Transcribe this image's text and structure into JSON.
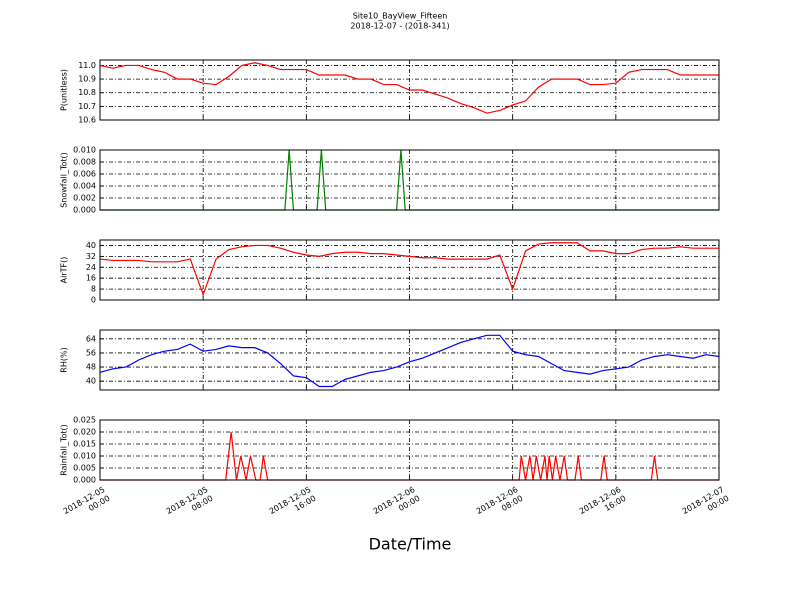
{
  "chart_data": [
    {
      "type": "line",
      "title": "Site10_BayView_Fifteen",
      "subtitle": "2018-12-07 - (2018-341)",
      "ylabel": "P(unitless)",
      "color": "#ff0000",
      "x": [
        "2018-12-05 00:00",
        "2018-12-05 01:00",
        "2018-12-05 02:00",
        "2018-12-05 03:00",
        "2018-12-05 04:00",
        "2018-12-05 05:00",
        "2018-12-05 06:00",
        "2018-12-05 07:00",
        "2018-12-05 08:00",
        "2018-12-05 09:00",
        "2018-12-05 10:00",
        "2018-12-05 11:00",
        "2018-12-05 12:00",
        "2018-12-05 13:00",
        "2018-12-05 14:00",
        "2018-12-05 15:00",
        "2018-12-05 16:00",
        "2018-12-05 17:00",
        "2018-12-05 18:00",
        "2018-12-05 19:00",
        "2018-12-05 20:00",
        "2018-12-05 21:00",
        "2018-12-05 22:00",
        "2018-12-05 23:00",
        "2018-12-06 00:00",
        "2018-12-06 01:00",
        "2018-12-06 02:00",
        "2018-12-06 03:00",
        "2018-12-06 04:00",
        "2018-12-06 05:00",
        "2018-12-06 06:00",
        "2018-12-06 07:00",
        "2018-12-06 08:00",
        "2018-12-06 09:00",
        "2018-12-06 10:00",
        "2018-12-06 11:00",
        "2018-12-06 12:00",
        "2018-12-06 13:00",
        "2018-12-06 14:00",
        "2018-12-06 15:00",
        "2018-12-06 16:00",
        "2018-12-06 17:00",
        "2018-12-06 18:00",
        "2018-12-06 19:00",
        "2018-12-06 20:00",
        "2018-12-06 21:00",
        "2018-12-06 22:00",
        "2018-12-06 23:00",
        "2018-12-07 00:00"
      ],
      "values": [
        11.0,
        10.98,
        11.0,
        11.0,
        10.97,
        10.95,
        10.9,
        10.9,
        10.87,
        10.86,
        10.92,
        11.0,
        11.02,
        11.0,
        10.97,
        10.97,
        10.97,
        10.93,
        10.93,
        10.93,
        10.9,
        10.9,
        10.86,
        10.86,
        10.82,
        10.82,
        10.79,
        10.76,
        10.72,
        10.69,
        10.65,
        10.67,
        10.71,
        10.74,
        10.84,
        10.9,
        10.9,
        10.9,
        10.86,
        10.86,
        10.87,
        10.95,
        10.97,
        10.97,
        10.97,
        10.93,
        10.93,
        10.93,
        10.93
      ],
      "ylim": [
        10.6,
        11.04
      ],
      "yticks": [
        {
          "value": 11,
          "label": "11.0"
        },
        10.9,
        10.8,
        10.7,
        10.6
      ],
      "grid": true
    },
    {
      "type": "line",
      "ylabel": "Snowfall_Tot()",
      "color": "#007f00",
      "x": [
        "2018-12-05 00:00",
        "2018-12-05 14:20",
        "2018-12-05 14:40",
        "2018-12-05 15:00",
        "2018-12-05 16:50",
        "2018-12-05 17:10",
        "2018-12-05 17:30",
        "2018-12-05 23:00",
        "2018-12-05 23:20",
        "2018-12-05 23:40",
        "2018-12-07 00:00"
      ],
      "values": [
        0,
        0,
        0.01,
        0,
        0,
        0.01,
        0,
        0,
        0.01,
        0,
        0
      ],
      "ylim": [
        0,
        0.01
      ],
      "yticks": [
        {
          "value": 0,
          "label": "0.000"
        },
        0.002,
        0.004,
        0.006,
        0.008,
        {
          "value": 0.01,
          "label": "0.010"
        }
      ],
      "grid": true
    },
    {
      "type": "line",
      "ylabel": "AirTF()",
      "color": "#ff0000",
      "x": [
        "2018-12-05 00:00",
        "2018-12-05 01:00",
        "2018-12-05 02:00",
        "2018-12-05 03:00",
        "2018-12-05 04:00",
        "2018-12-05 05:00",
        "2018-12-05 06:00",
        "2018-12-05 07:00",
        "2018-12-05 08:00",
        "2018-12-05 09:00",
        "2018-12-05 10:00",
        "2018-12-05 11:00",
        "2018-12-05 12:00",
        "2018-12-05 13:00",
        "2018-12-05 14:00",
        "2018-12-05 15:00",
        "2018-12-05 16:00",
        "2018-12-05 17:00",
        "2018-12-05 18:00",
        "2018-12-05 19:00",
        "2018-12-05 20:00",
        "2018-12-05 21:00",
        "2018-12-05 22:00",
        "2018-12-05 23:00",
        "2018-12-06 00:00",
        "2018-12-06 01:00",
        "2018-12-06 02:00",
        "2018-12-06 03:00",
        "2018-12-06 04:00",
        "2018-12-06 05:00",
        "2018-12-06 06:00",
        "2018-12-06 07:00",
        "2018-12-06 08:00",
        "2018-12-06 09:00",
        "2018-12-06 10:00",
        "2018-12-06 11:00",
        "2018-12-06 12:00",
        "2018-12-06 13:00",
        "2018-12-06 14:00",
        "2018-12-06 15:00",
        "2018-12-06 16:00",
        "2018-12-06 17:00",
        "2018-12-06 18:00",
        "2018-12-06 19:00",
        "2018-12-06 20:00",
        "2018-12-06 21:00",
        "2018-12-06 22:00",
        "2018-12-06 23:00",
        "2018-12-07 00:00"
      ],
      "values": [
        30,
        29,
        29,
        29,
        28,
        28,
        28,
        30,
        4,
        30,
        37,
        39,
        40,
        40,
        38,
        35,
        33,
        32,
        34,
        35,
        35,
        34,
        34,
        33,
        32,
        31,
        31,
        30,
        30,
        30,
        30,
        33,
        8,
        36,
        41,
        42,
        42,
        42,
        36,
        36,
        34,
        34,
        37,
        38,
        38,
        39,
        38,
        38,
        38
      ],
      "ylim": [
        0,
        44
      ],
      "yticks": [
        0,
        8,
        16,
        24,
        32,
        40
      ],
      "grid": true
    },
    {
      "type": "line",
      "ylabel": "RH(%)",
      "color": "#0000ff",
      "x": [
        "2018-12-05 00:00",
        "2018-12-05 01:00",
        "2018-12-05 02:00",
        "2018-12-05 03:00",
        "2018-12-05 04:00",
        "2018-12-05 05:00",
        "2018-12-05 06:00",
        "2018-12-05 07:00",
        "2018-12-05 08:00",
        "2018-12-05 09:00",
        "2018-12-05 10:00",
        "2018-12-05 11:00",
        "2018-12-05 12:00",
        "2018-12-05 13:00",
        "2018-12-05 14:00",
        "2018-12-05 15:00",
        "2018-12-05 16:00",
        "2018-12-05 17:00",
        "2018-12-05 18:00",
        "2018-12-05 19:00",
        "2018-12-05 20:00",
        "2018-12-05 21:00",
        "2018-12-05 22:00",
        "2018-12-05 23:00",
        "2018-12-06 00:00",
        "2018-12-06 01:00",
        "2018-12-06 02:00",
        "2018-12-06 03:00",
        "2018-12-06 04:00",
        "2018-12-06 05:00",
        "2018-12-06 06:00",
        "2018-12-06 07:00",
        "2018-12-06 08:00",
        "2018-12-06 09:00",
        "2018-12-06 10:00",
        "2018-12-06 11:00",
        "2018-12-06 12:00",
        "2018-12-06 13:00",
        "2018-12-06 14:00",
        "2018-12-06 15:00",
        "2018-12-06 16:00",
        "2018-12-06 17:00",
        "2018-12-06 18:00",
        "2018-12-06 19:00",
        "2018-12-06 20:00",
        "2018-12-06 21:00",
        "2018-12-06 22:00",
        "2018-12-06 23:00",
        "2018-12-07 00:00"
      ],
      "values": [
        45,
        47,
        48,
        52,
        55,
        57,
        58,
        61,
        57,
        58,
        60,
        59,
        59,
        56,
        50,
        43,
        42,
        37,
        37,
        41,
        43,
        45,
        46,
        48,
        51,
        53,
        56,
        59,
        62,
        64,
        66,
        66,
        57,
        55,
        54,
        50,
        46,
        45,
        44,
        46,
        47,
        48,
        52,
        54,
        55,
        54,
        53,
        55,
        54
      ],
      "ylim": [
        35,
        69
      ],
      "yticks": [
        40,
        48,
        56,
        64
      ],
      "grid": true
    },
    {
      "type": "line",
      "ylabel": "Rainfall_Tot()",
      "xlabel": "Date/Time",
      "color": "#ff0000",
      "x": [
        "2018-12-05 00:00",
        "2018-12-05 09:45",
        "2018-12-05 10:10",
        "2018-12-05 10:35",
        "2018-12-05 10:55",
        "2018-12-05 11:20",
        "2018-12-05 11:40",
        "2018-12-05 12:05",
        "2018-12-05 12:25",
        "2018-12-05 12:40",
        "2018-12-05 13:00",
        "2018-12-06 08:30",
        "2018-12-06 08:40",
        "2018-12-06 09:00",
        "2018-12-06 09:20",
        "2018-12-06 09:35",
        "2018-12-06 09:50",
        "2018-12-06 10:10",
        "2018-12-06 10:30",
        "2018-12-06 10:40",
        "2018-12-06 10:50",
        "2018-12-06 11:05",
        "2018-12-06 11:20",
        "2018-12-06 11:40",
        "2018-12-06 12:00",
        "2018-12-06 12:15",
        "2018-12-06 12:50",
        "2018-12-06 13:05",
        "2018-12-06 13:20",
        "2018-12-06 14:50",
        "2018-12-06 15:05",
        "2018-12-06 15:20",
        "2018-12-06 18:45",
        "2018-12-06 19:00",
        "2018-12-06 19:15",
        "2018-12-07 00:00"
      ],
      "values": [
        0,
        0,
        0.02,
        0,
        0.01,
        0,
        0.01,
        0,
        0,
        0.01,
        0,
        0,
        0.01,
        0,
        0.01,
        0,
        0.01,
        0,
        0.01,
        0,
        0.01,
        0,
        0.01,
        0,
        0.01,
        0,
        0,
        0.01,
        0,
        0,
        0.01,
        0,
        0,
        0.01,
        0,
        0
      ],
      "ylim": [
        0,
        0.025
      ],
      "yticks": [
        {
          "value": 0,
          "label": "0.000"
        },
        0.005,
        {
          "value": 0.01,
          "label": "0.010"
        },
        0.015,
        {
          "value": 0.02,
          "label": "0.020"
        },
        0.025
      ],
      "grid": true,
      "xlim": [
        "2018-12-05 00:00",
        "2018-12-07 00:00"
      ],
      "xticks": [
        {
          "value": "2018-12-05 00:00",
          "label": "2018-12-05\n00:00"
        },
        {
          "value": "2018-12-05 08:00",
          "label": "2018-12-05\n08:00"
        },
        {
          "value": "2018-12-05 16:00",
          "label": "2018-12-05\n16:00"
        },
        {
          "value": "2018-12-06 00:00",
          "label": "2018-12-06\n00:00"
        },
        {
          "value": "2018-12-06 08:00",
          "label": "2018-12-06\n08:00"
        },
        {
          "value": "2018-12-06 16:00",
          "label": "2018-12-06\n16:00"
        },
        {
          "value": "2018-12-07 00:00",
          "label": "2018-12-07\n00:00"
        }
      ]
    }
  ]
}
